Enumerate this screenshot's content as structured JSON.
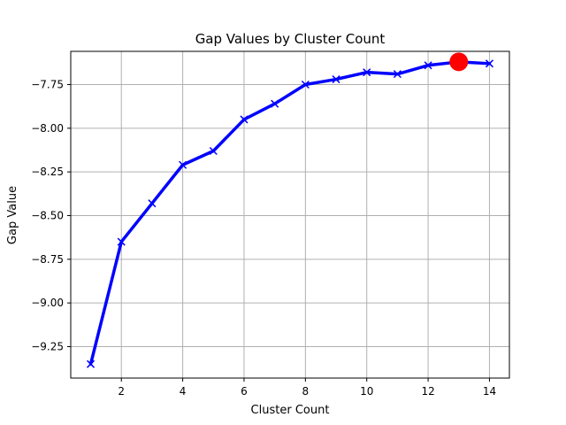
{
  "chart_data": {
    "type": "line",
    "title": "Gap Values by Cluster Count",
    "xlabel": "Cluster Count",
    "ylabel": "Gap Value",
    "x": [
      1,
      2,
      3,
      4,
      5,
      6,
      7,
      8,
      9,
      10,
      11,
      12,
      13,
      14
    ],
    "series": [
      {
        "values": [
          -9.35,
          -8.65,
          -8.43,
          -8.21,
          -8.13,
          -7.95,
          -7.86,
          -7.75,
          -7.72,
          -7.68,
          -7.69,
          -7.64,
          -7.62,
          -7.63
        ],
        "color": "#0000ff",
        "marker": "x"
      }
    ],
    "highlight": {
      "x": 13,
      "y": -7.62,
      "color": "#ff0000"
    },
    "xlim": [
      0.35,
      14.65
    ],
    "ylim": [
      -9.43,
      -7.56
    ],
    "xticks": [
      2,
      4,
      6,
      8,
      10,
      12,
      14
    ],
    "yticks": [
      -9.25,
      -9.0,
      -8.75,
      -8.5,
      -8.25,
      -8.0,
      -7.75
    ],
    "xtick_labels": [
      "2",
      "4",
      "6",
      "8",
      "10",
      "12",
      "14"
    ],
    "ytick_labels": [
      "−9.25",
      "−9.00",
      "−8.75",
      "−8.50",
      "−8.25",
      "−8.00",
      "−7.75"
    ],
    "grid": true,
    "grid_color": "#b0b0b0"
  }
}
